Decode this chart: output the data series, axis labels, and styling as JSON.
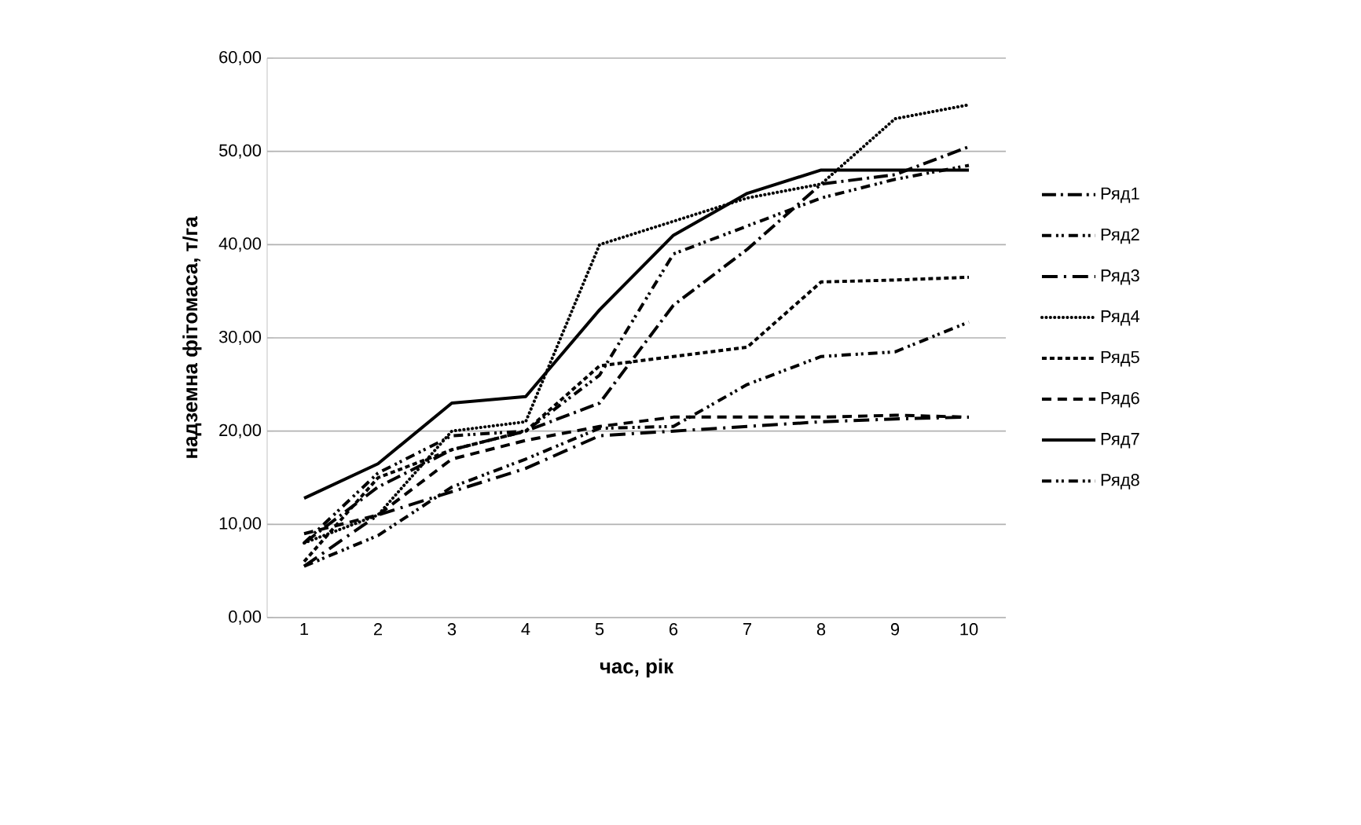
{
  "chart_data": {
    "type": "line",
    "xlabel": "час, рік",
    "ylabel": "надземна фітомаса, т/га",
    "categories": [
      "1",
      "2",
      "3",
      "4",
      "5",
      "6",
      "7",
      "8",
      "9",
      "10"
    ],
    "series": [
      {
        "name": "Ряд1",
        "color": "#000000",
        "line_style": "dashed",
        "values": [
          8,
          14,
          18,
          20,
          23,
          33.5,
          39.5,
          46.5,
          47.5,
          50.5
        ]
      },
      {
        "name": "Ряд2",
        "color": "#000000",
        "line_style": "dashed",
        "values": [
          5.5,
          8.8,
          14,
          17,
          20.3,
          20.5,
          25,
          28,
          28.5,
          31.7
        ]
      },
      {
        "name": "Ряд3",
        "color": "#000000",
        "line_style": "dashed",
        "values": [
          5.5,
          11,
          13.5,
          16,
          19.5,
          20,
          20.5,
          21,
          21.3,
          21.5
        ]
      },
      {
        "name": "Ряд4",
        "color": "#000000",
        "line_style": "dotted",
        "values": [
          8,
          11,
          20,
          21,
          40,
          42.5,
          45,
          46.5,
          53.5,
          55
        ]
      },
      {
        "name": "Ряд5",
        "color": "#000000",
        "line_style": "dashed",
        "values": [
          6,
          15,
          18,
          20,
          27,
          28,
          29,
          36,
          36.2,
          36.5
        ]
      },
      {
        "name": "Ряд6",
        "color": "#000000",
        "line_style": "dashed",
        "values": [
          9,
          11,
          17,
          19,
          20.5,
          21.5,
          21.5,
          21.5,
          21.7,
          21.5
        ]
      },
      {
        "name": "Ряд7",
        "color": "#000000",
        "line_style": "solid",
        "values": [
          12.8,
          16.5,
          23,
          23.7,
          33,
          41,
          45.5,
          48,
          48,
          48
        ]
      },
      {
        "name": "Ряд8",
        "color": "#000000",
        "line_style": "dashed",
        "values": [
          8,
          15.5,
          19.5,
          20,
          26,
          39,
          42,
          45,
          47,
          48.5
        ]
      }
    ],
    "ylim": [
      0,
      60
    ],
    "yticks": [
      {
        "value": 0,
        "label": "0,00"
      },
      {
        "value": 10,
        "label": "10,00"
      },
      {
        "value": 20,
        "label": "20,00"
      },
      {
        "value": 30,
        "label": "30,00"
      },
      {
        "value": 40,
        "label": "40,00"
      },
      {
        "value": 50,
        "label": "50,00"
      },
      {
        "value": 60,
        "label": "60,00"
      }
    ],
    "grid": "y",
    "legend": "right",
    "marker": "none"
  }
}
